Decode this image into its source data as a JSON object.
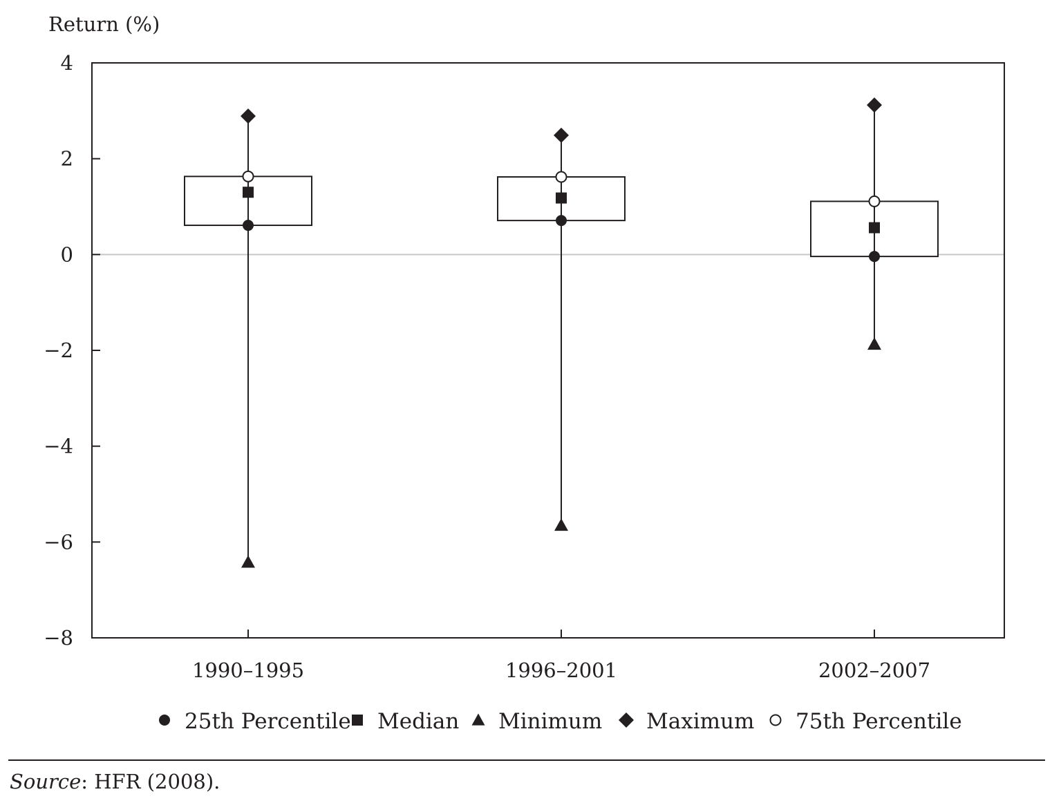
{
  "chart_data": {
    "type": "box",
    "ylabel": "Return (%)",
    "ylim": [
      -8,
      4
    ],
    "yticks": [
      4,
      2,
      0,
      -2,
      -4,
      -6,
      -8
    ],
    "ytick_labels": [
      "4",
      "2",
      "0",
      "−2",
      "−4",
      "−6",
      "−8"
    ],
    "categories": [
      "1990–1995",
      "1996–2001",
      "2002–2007"
    ],
    "series": [
      {
        "name": "25th Percentile",
        "marker": "filled-circle",
        "values": [
          0.61,
          0.71,
          -0.04
        ]
      },
      {
        "name": "Median",
        "marker": "filled-square",
        "values": [
          1.3,
          1.18,
          0.56
        ]
      },
      {
        "name": "Minimum",
        "marker": "filled-triangle",
        "values": [
          -6.45,
          -5.68,
          -1.9
        ]
      },
      {
        "name": "Maximum",
        "marker": "filled-diamond",
        "values": [
          2.89,
          2.49,
          3.12
        ]
      },
      {
        "name": "75th Percentile",
        "marker": "open-circle",
        "values": [
          1.63,
          1.62,
          1.11
        ]
      }
    ],
    "zero_line": true,
    "grid": false,
    "legend_position": "bottom"
  },
  "source": {
    "label": "Source",
    "text": ": HFR (2008)."
  }
}
